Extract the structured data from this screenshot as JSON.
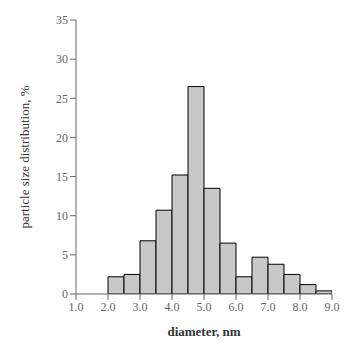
{
  "chart_data": {
    "type": "histogram",
    "bins": [
      2.0,
      2.5,
      3.0,
      3.5,
      4.0,
      4.5,
      5.0,
      5.5,
      6.0,
      6.5,
      7.0,
      7.5,
      8.0,
      8.5,
      9.0
    ],
    "values": [
      2.2,
      2.5,
      6.8,
      10.7,
      15.2,
      26.5,
      13.5,
      6.5,
      2.2,
      4.7,
      3.8,
      2.5,
      1.2,
      0.4
    ],
    "color": "#c8c8c8",
    "xlabel": "diameter, nm",
    "ylabel": "particle size distribution, %",
    "xlim": [
      1.0,
      9.0
    ],
    "ylim": [
      0,
      35
    ],
    "xticks": [
      {
        "value": 1.0,
        "label": "1.0"
      },
      {
        "value": 2.0,
        "label": "2.0"
      },
      {
        "value": 3.0,
        "label": "3.0"
      },
      {
        "value": 4.0,
        "label": "4.0"
      },
      {
        "value": 5.0,
        "label": "5.0"
      },
      {
        "value": 6.0,
        "label": "6.0"
      },
      {
        "value": 7.0,
        "label": "7.0"
      },
      {
        "value": 8.0,
        "label": "8.0"
      },
      {
        "value": 9.0,
        "label": "9.0"
      }
    ],
    "yticks": [
      0,
      5,
      10,
      15,
      20,
      25,
      30,
      35
    ]
  }
}
